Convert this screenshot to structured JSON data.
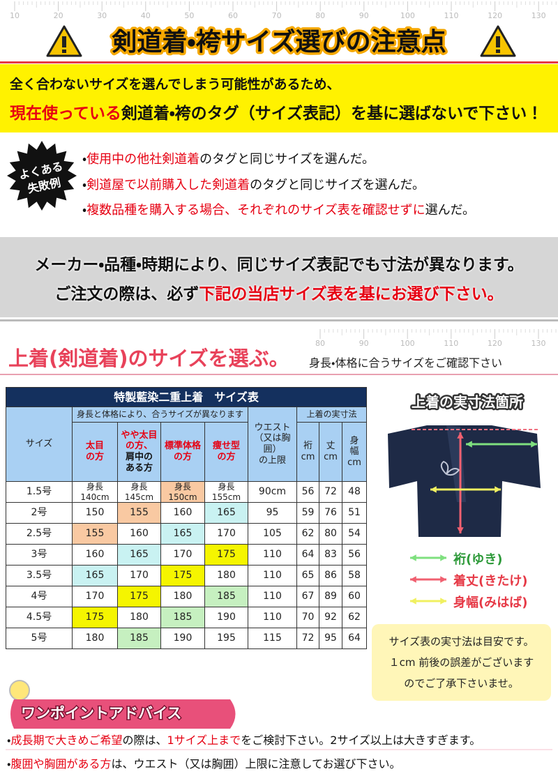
{
  "ruler_top": [
    10,
    20,
    30,
    40,
    50,
    60,
    70,
    80,
    90,
    100,
    110,
    120,
    130
  ],
  "header": {
    "title": "剣道着・袴サイズ選びの注意点"
  },
  "warning": {
    "line1": "全く合わないサイズを選んでしまう可能性があるため、",
    "line2": [
      {
        "text": "現在使っている",
        "color": "#e60012"
      },
      {
        "text": "剣道着・袴のタグ（サイズ表記）を基に選ばないで下さい！",
        "color": "#111111"
      }
    ]
  },
  "failures": {
    "badge": [
      "よくある",
      "失敗例"
    ],
    "items": [
      [
        {
          "text": "・",
          "color": "#111111"
        },
        {
          "text": "使用中の他社剣道着",
          "color": "#e60012"
        },
        {
          "text": "のタグと同じサイズを選んだ。",
          "color": "#111111"
        }
      ],
      [
        {
          "text": "・",
          "color": "#111111"
        },
        {
          "text": "剣道屋で以前購入した剣道着",
          "color": "#e60012"
        },
        {
          "text": "のタグと同じサイズを選んだ。",
          "color": "#111111"
        }
      ],
      [
        {
          "text": "・",
          "color": "#111111"
        },
        {
          "text": "複数品種を購入する場合、それぞれのサイズ表を確認せずに",
          "color": "#e60012"
        },
        {
          "text": "選んだ。",
          "color": "#111111"
        }
      ]
    ]
  },
  "caution": {
    "line1": "メーカー・品種・時期により、同じサイズ表記でも寸法が異なります。",
    "line2": [
      {
        "text": "ご注文の際は、必ず",
        "color": "#111111"
      },
      {
        "text": "下記の当店サイズ表を基にお選び下さい。",
        "color": "#e60012"
      }
    ]
  },
  "ruler_mid": [
    80,
    90,
    100,
    110,
    120,
    130
  ],
  "section": {
    "title": "上着(剣道着)のサイズを選ぶ。",
    "subtitle": "身長・体格に合うサイズをご確認下さい"
  },
  "table": {
    "title": "特製藍染二重上着　サイズ表",
    "headers": {
      "size": "サイズ",
      "height_group": "身長と体格により、合うサイズが異なります",
      "body_types": [
        [
          {
            "text": "太目\nの方",
            "color": "#e60012"
          }
        ],
        [
          {
            "text": "やや太目\nの方、\n",
            "color": "#e60012"
          },
          {
            "text": "肩中の\nある方",
            "color": "#111111"
          }
        ],
        [
          {
            "text": "標準体格\nの方",
            "color": "#e60012"
          }
        ],
        [
          {
            "text": "痩せ型\nの方",
            "color": "#e60012"
          }
        ]
      ],
      "waist": "ウエスト\n（又は胸\n囲）\nの上限",
      "actual": "上着の実寸法",
      "dims": [
        "裄\ncm",
        "丈\ncm",
        "身\n幅\ncm"
      ]
    },
    "rows": [
      [
        "1.5号",
        "身長\n140cm",
        "身長\n145cm",
        "身長\n150cm",
        "身長\n155cm",
        "90cm",
        56,
        72,
        48
      ],
      [
        "2号",
        150,
        155,
        160,
        165,
        95,
        59,
        76,
        51
      ],
      [
        "2.5号",
        155,
        160,
        165,
        170,
        105,
        62,
        80,
        54
      ],
      [
        "3号",
        160,
        165,
        170,
        175,
        110,
        64,
        83,
        56
      ],
      [
        "3.5号",
        165,
        170,
        175,
        180,
        110,
        65,
        86,
        58
      ],
      [
        "4号",
        170,
        175,
        180,
        185,
        110,
        67,
        89,
        60
      ],
      [
        "4.5号",
        175,
        180,
        185,
        190,
        110,
        70,
        92,
        62
      ],
      [
        "5号",
        180,
        185,
        190,
        195,
        115,
        72,
        95,
        64
      ]
    ],
    "cell_colors": [
      [
        null,
        null,
        "#f9c9a2",
        null
      ],
      [
        null,
        "#f9c9a2",
        null,
        "#c9f2f2"
      ],
      [
        "#f9c9a2",
        null,
        "#c9f2f2",
        null
      ],
      [
        null,
        "#c9f2f2",
        null,
        "#f5f500"
      ],
      [
        "#c9f2f2",
        null,
        "#f5f500",
        null
      ],
      [
        null,
        "#f5f500",
        null,
        "#c6f0c0"
      ],
      [
        "#f5f500",
        null,
        "#c6f0c0",
        null
      ],
      [
        null,
        "#c6f0c0",
        null,
        null
      ]
    ]
  },
  "diagram": {
    "title": "上着の実寸法箇所",
    "legend": [
      {
        "label": "裄(ゆき)",
        "color": "#7fe07f"
      },
      {
        "label": "着丈(きたけ)",
        "color": "#f06070"
      },
      {
        "label": "身幅(みはば)",
        "color": "#f0f060"
      }
    ]
  },
  "note": [
    "サイズ表の実寸法は目安です。",
    "１cm 前後の誤差がございます",
    "のでご了承下さいませ。"
  ],
  "advice": {
    "title": "ワンポイントアドバイス",
    "items": [
      [
        {
          "text": "・",
          "color": "#111111"
        },
        {
          "text": "成長期で大きめご希望",
          "color": "#e60012"
        },
        {
          "text": "の際は、",
          "color": "#111111"
        },
        {
          "text": "1サイズ上まで",
          "color": "#e60012"
        },
        {
          "text": "をご検討下さい。2サイズ以上は大きすぎます。",
          "color": "#111111"
        }
      ],
      [
        {
          "text": "・",
          "color": "#111111"
        },
        {
          "text": "腹囲や胸囲がある方",
          "color": "#e60012"
        },
        {
          "text": "は、ウエスト（又は胸囲）上限に注意してお選び下さい。",
          "color": "#111111"
        }
      ]
    ]
  }
}
